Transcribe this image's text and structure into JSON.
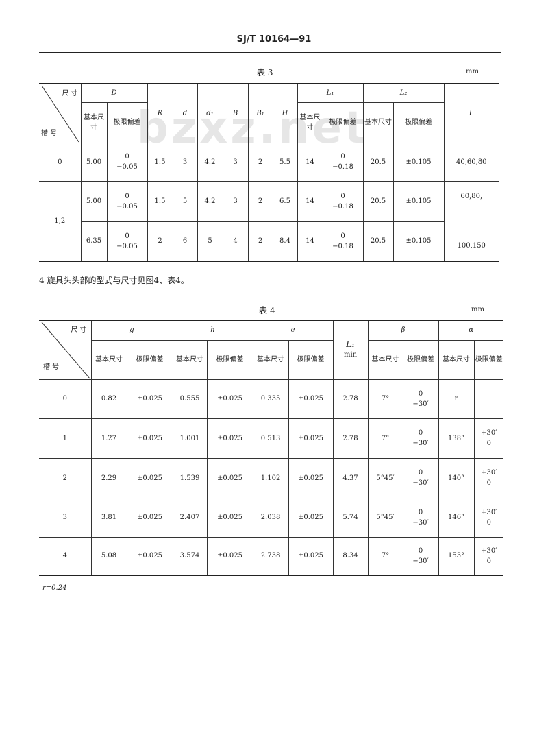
{
  "header": {
    "standard": "SJ/T 10164—91"
  },
  "watermark": "bzxz.net",
  "table3": {
    "caption": "表 3",
    "unit": "mm",
    "corner": {
      "top": "尺 寸",
      "bottom": "槽 号"
    },
    "headers": {
      "D": "D",
      "R": "R",
      "d": "d",
      "d1": "d₁",
      "B": "B",
      "B1": "B₁",
      "H": "H",
      "L1": "L₁",
      "L2": "L₂",
      "L": "L",
      "basic": "基本尺寸",
      "limit": "极限偏差"
    },
    "rows": [
      {
        "no": "0",
        "D": "5.00",
        "D_dev": [
          "0",
          "−0.05"
        ],
        "R": "1.5",
        "d": "3",
        "d1": "4.2",
        "B": "3",
        "B1": "2",
        "H": "5.5",
        "L1": "14",
        "L1_dev": [
          "0",
          "−0.18"
        ],
        "L2": "20.5",
        "L2_dev": "±0.105",
        "L": "40,60,80"
      },
      {
        "no": "1,2",
        "D": "5.00",
        "D_dev": [
          "0",
          "−0.05"
        ],
        "R": "1.5",
        "d": "5",
        "d1": "4.2",
        "B": "3",
        "B1": "2",
        "H": "6.5",
        "L1": "14",
        "L1_dev": [
          "0",
          "−0.18"
        ],
        "L2": "20.5",
        "L2_dev": "±0.105",
        "L": "60,80,"
      },
      {
        "D": "6.35",
        "D_dev": [
          "0",
          "−0.05"
        ],
        "R": "2",
        "d": "6",
        "d1": "5",
        "B": "4",
        "B1": "2",
        "H": "8.4",
        "L1": "14",
        "L1_dev": [
          "0",
          "−0.18"
        ],
        "L2": "20.5",
        "L2_dev": "±0.105",
        "L": "100,150"
      }
    ]
  },
  "paragraph": "4  旋具头头部的型式与尺寸见图4、表4。",
  "table4": {
    "caption": "表 4",
    "unit": "mm",
    "corner": {
      "top": "尺 寸",
      "bottom": "槽 号"
    },
    "headers": {
      "g": "g",
      "h": "h",
      "e": "e",
      "L1": "L₁",
      "L1_sub": "min",
      "beta": "β",
      "alpha": "α",
      "basic": "基本尺寸",
      "limit": "极限偏差"
    },
    "rows": [
      {
        "no": "0",
        "g": "0.82",
        "g_dev": "±0.025",
        "h": "0.555",
        "h_dev": "±0.025",
        "e": "0.335",
        "e_dev": "±0.025",
        "L1": "2.78",
        "beta": "7°",
        "beta_dev": [
          "0",
          "−30′"
        ],
        "alpha": "r",
        "alpha_dev": [
          "",
          ""
        ]
      },
      {
        "no": "1",
        "g": "1.27",
        "g_dev": "±0.025",
        "h": "1.001",
        "h_dev": "±0.025",
        "e": "0.513",
        "e_dev": "±0.025",
        "L1": "2.78",
        "beta": "7°",
        "beta_dev": [
          "0",
          "−30′"
        ],
        "alpha": "138°",
        "alpha_dev": [
          "+30′",
          "0"
        ]
      },
      {
        "no": "2",
        "g": "2.29",
        "g_dev": "±0.025",
        "h": "1.539",
        "h_dev": "±0.025",
        "e": "1.102",
        "e_dev": "±0.025",
        "L1": "4.37",
        "beta": "5°45′",
        "beta_dev": [
          "0",
          "−30′"
        ],
        "alpha": "140°",
        "alpha_dev": [
          "+30′",
          "0"
        ]
      },
      {
        "no": "3",
        "g": "3.81",
        "g_dev": "±0.025",
        "h": "2.407",
        "h_dev": "±0.025",
        "e": "2.038",
        "e_dev": "±0.025",
        "L1": "5.74",
        "beta": "5°45′",
        "beta_dev": [
          "0",
          "−30′"
        ],
        "alpha": "146°",
        "alpha_dev": [
          "+30′",
          "0"
        ]
      },
      {
        "no": "4",
        "g": "5.08",
        "g_dev": "±0.025",
        "h": "3.574",
        "h_dev": "±0.025",
        "e": "2.738",
        "e_dev": "±0.025",
        "L1": "8.34",
        "beta": "7°",
        "beta_dev": [
          "0",
          "−30′"
        ],
        "alpha": "153°",
        "alpha_dev": [
          "+30′",
          "0"
        ]
      }
    ],
    "footnote": "r=0.24"
  }
}
